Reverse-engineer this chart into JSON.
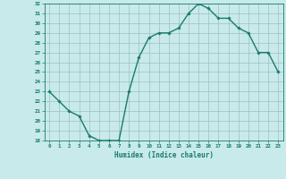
{
  "x": [
    0,
    1,
    2,
    3,
    4,
    5,
    6,
    7,
    8,
    9,
    10,
    11,
    12,
    13,
    14,
    15,
    16,
    17,
    18,
    19,
    20,
    21,
    22,
    23
  ],
  "y": [
    23.0,
    22.0,
    21.0,
    20.5,
    18.5,
    18.0,
    18.0,
    18.0,
    23.0,
    26.5,
    28.5,
    29.0,
    29.0,
    29.5,
    31.0,
    32.0,
    31.5,
    30.5,
    30.5,
    29.5,
    29.0,
    27.0,
    27.0,
    25.0
  ],
  "line_color": "#1a7a6e",
  "marker": "D",
  "markersize": 1.8,
  "linewidth": 1.0,
  "xlabel": "Humidex (Indice chaleur)",
  "ylim": [
    18,
    32
  ],
  "xlim": [
    -0.5,
    23.5
  ],
  "yticks": [
    18,
    19,
    20,
    21,
    22,
    23,
    24,
    25,
    26,
    27,
    28,
    29,
    30,
    31,
    32
  ],
  "xticks": [
    0,
    1,
    2,
    3,
    4,
    5,
    6,
    7,
    8,
    9,
    10,
    11,
    12,
    13,
    14,
    15,
    16,
    17,
    18,
    19,
    20,
    21,
    22,
    23
  ],
  "bg_color": "#c8eaea",
  "grid_color": "#9dbfbf",
  "tick_color": "#1a7a6e",
  "label_color": "#1a7a6e"
}
